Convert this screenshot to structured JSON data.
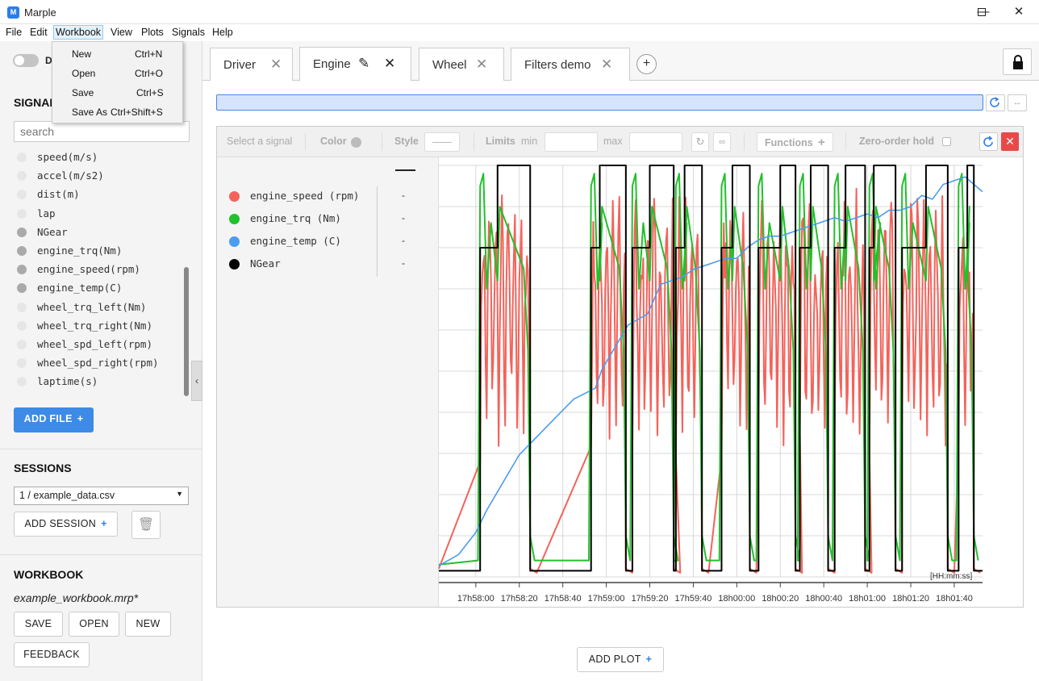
{
  "window": {
    "title": "Marple",
    "icon_text": "M"
  },
  "menubar": [
    "File",
    "Edit",
    "Workbook",
    "View",
    "Plots",
    "Signals",
    "Help"
  ],
  "workbook_menu": [
    {
      "label": "New",
      "shortcut": "Ctrl+N"
    },
    {
      "label": "Open",
      "shortcut": "Ctrl+O"
    },
    {
      "label": "Save",
      "shortcut": "Ctrl+S"
    },
    {
      "label": "Save As",
      "shortcut": "Ctrl+Shift+S"
    }
  ],
  "sidebar": {
    "toggle_label": "D",
    "signals_header": "SIGNALS",
    "search_placeholder": "search",
    "signals": [
      {
        "name": "speed(m/s)",
        "on": false
      },
      {
        "name": "accel(m/s2)",
        "on": false
      },
      {
        "name": "dist(m)",
        "on": false
      },
      {
        "name": "lap",
        "on": false
      },
      {
        "name": "NGear",
        "on": true
      },
      {
        "name": "engine_trq(Nm)",
        "on": true
      },
      {
        "name": "engine_speed(rpm)",
        "on": true
      },
      {
        "name": "engine_temp(C)",
        "on": true
      },
      {
        "name": "wheel_trq_left(Nm)",
        "on": false
      },
      {
        "name": "wheel_trq_right(Nm)",
        "on": false
      },
      {
        "name": "wheel_spd_left(rpm)",
        "on": false
      },
      {
        "name": "wheel_spd_right(rpm)",
        "on": false
      },
      {
        "name": "laptime(s)",
        "on": false
      }
    ],
    "add_file": "ADD FILE",
    "sessions_header": "SESSIONS",
    "session_selected": "1 / example_data.csv",
    "add_session": "ADD SESSION",
    "workbook_header": "WORKBOOK",
    "workbook_name": "example_workbook.mrp*",
    "save": "SAVE",
    "open": "OPEN",
    "new": "NEW",
    "feedback": "FEEDBACK"
  },
  "tabs": [
    {
      "label": "Driver"
    },
    {
      "label": "Engine"
    },
    {
      "label": "Wheel"
    },
    {
      "label": "Filters demo"
    }
  ],
  "toolbar": {
    "select_signal": "Select a signal",
    "color": "Color",
    "style": "Style",
    "limits": "Limits",
    "min": "min",
    "max": "max",
    "functions": "Functions",
    "zero_order_hold": "Zero-order hold"
  },
  "legend": [
    {
      "name": "engine_speed (rpm)",
      "value": "-",
      "color": "#f4625a"
    },
    {
      "name": "engine_trq (Nm)",
      "value": "-",
      "color": "#22c02b"
    },
    {
      "name": "engine_temp (C)",
      "value": "-",
      "color": "#4a9cf0"
    },
    {
      "name": "NGear",
      "value": "-",
      "color": "#000000"
    }
  ],
  "add_plot": "ADD PLOT",
  "chart_data": {
    "type": "line",
    "title": "",
    "xlabel": "",
    "ylabel": "",
    "x_unit_label": "[HH:mm:ss]",
    "x_ticks": [
      "17h58:00",
      "17h58:20",
      "17h58:40",
      "17h59:00",
      "17h59:20",
      "17h59:40",
      "18h00:00",
      "18h00:20",
      "18h00:40",
      "18h01:00",
      "18h01:20",
      "18h01:40"
    ],
    "x_range_seconds": [
      -17,
      233
    ],
    "y_range_normalized": [
      0,
      1
    ],
    "series": [
      {
        "name": "NGear",
        "color": "#000000",
        "pulses": [
          [
            2,
            10,
            25
          ],
          [
            53,
            57,
            69
          ],
          [
            72,
            80,
            91
          ],
          [
            92,
            96,
            104
          ],
          [
            113,
            118,
            126
          ],
          [
            130,
            140,
            147
          ],
          [
            149,
            154,
            162
          ],
          [
            165,
            170,
            179
          ],
          [
            181,
            183,
            193
          ],
          [
            196,
            207,
            217
          ],
          [
            222,
            226,
            229
          ]
        ]
      },
      {
        "name": "engine_temp (C)",
        "color": "#4a9cf0",
        "x": [
          -17,
          -8,
          0,
          5,
          10,
          20,
          25,
          35,
          45,
          55,
          58,
          62,
          65,
          70,
          73,
          79,
          85,
          90,
          95,
          100,
          105,
          110,
          115,
          120,
          125,
          130,
          135,
          140,
          145,
          150,
          155,
          160,
          165,
          170,
          175,
          180,
          185,
          190,
          195,
          200,
          205,
          210,
          215,
          220,
          225,
          233
        ],
        "y": [
          0.03,
          0.06,
          0.12,
          0.18,
          0.23,
          0.33,
          0.36,
          0.42,
          0.48,
          0.51,
          0.56,
          0.6,
          0.63,
          0.68,
          0.69,
          0.71,
          0.79,
          0.8,
          0.81,
          0.83,
          0.84,
          0.85,
          0.86,
          0.86,
          0.89,
          0.91,
          0.92,
          0.92,
          0.93,
          0.94,
          0.95,
          0.96,
          0.97,
          0.96,
          0.97,
          0.98,
          0.97,
          0.99,
          0.99,
          1.0,
          1.03,
          1.02,
          1.06,
          1.07,
          1.08,
          1.04
        ]
      }
    ]
  }
}
